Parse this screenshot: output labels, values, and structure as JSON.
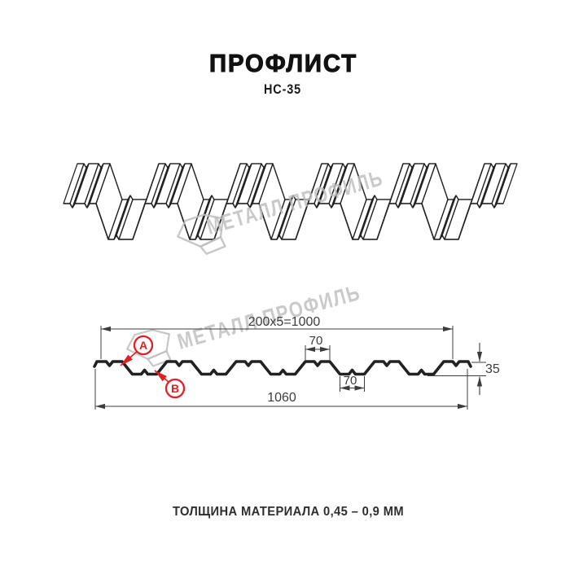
{
  "header": {
    "title": "ПРОФЛИСТ",
    "subtitle": "НС-35"
  },
  "footer": {
    "note": "ТОЛЩИНА МАТЕРИАЛА 0,45 – 0,9 ММ"
  },
  "watermark": {
    "brand": "МЕТАЛЛ ПРОФИЛЬ"
  },
  "drawing": {
    "dimensions": {
      "module_width": "200x5=1000",
      "crest_flat": "70",
      "valley_flat": "70",
      "overall_width": "1060",
      "profile_height": "35"
    },
    "markers": {
      "a": "A",
      "b": "B"
    }
  },
  "colors": {
    "accent_red": "#e31e24",
    "line": "#222222",
    "dim_line": "#3c3c3c",
    "watermark_gray": "#bdbdbd",
    "background": "#ffffff"
  }
}
